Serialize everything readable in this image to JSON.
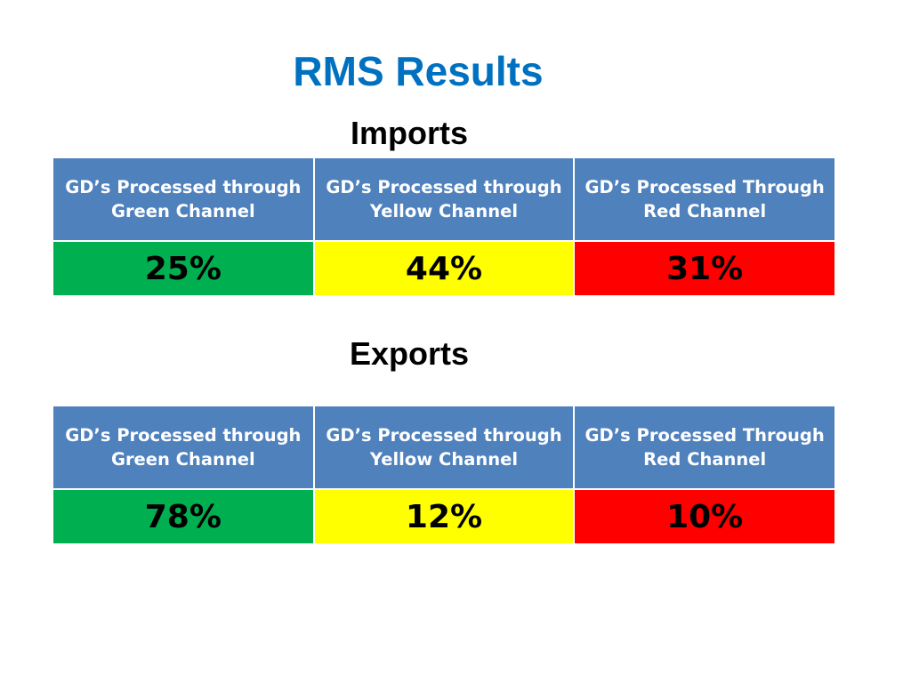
{
  "slide": {
    "title": "RMS Results"
  },
  "imports": {
    "heading": "Imports",
    "columns": [
      "GD’s Processed through Green Channel",
      "GD’s Processed through Yellow Channel",
      "GD’s Processed Through Red Channel"
    ],
    "values": [
      "25%",
      "44%",
      "31%"
    ]
  },
  "exports": {
    "heading": "Exports",
    "columns": [
      "GD’s Processed through Green Channel",
      "GD’s Processed through Yellow Channel",
      "GD’s Processed Through Red Channel"
    ],
    "values": [
      "78%",
      "12%",
      "10%"
    ]
  },
  "colors": {
    "title": "#0070c0",
    "header": "#4f81bd",
    "green": "#00b050",
    "yellow": "#ffff00",
    "red": "#ff0000"
  }
}
